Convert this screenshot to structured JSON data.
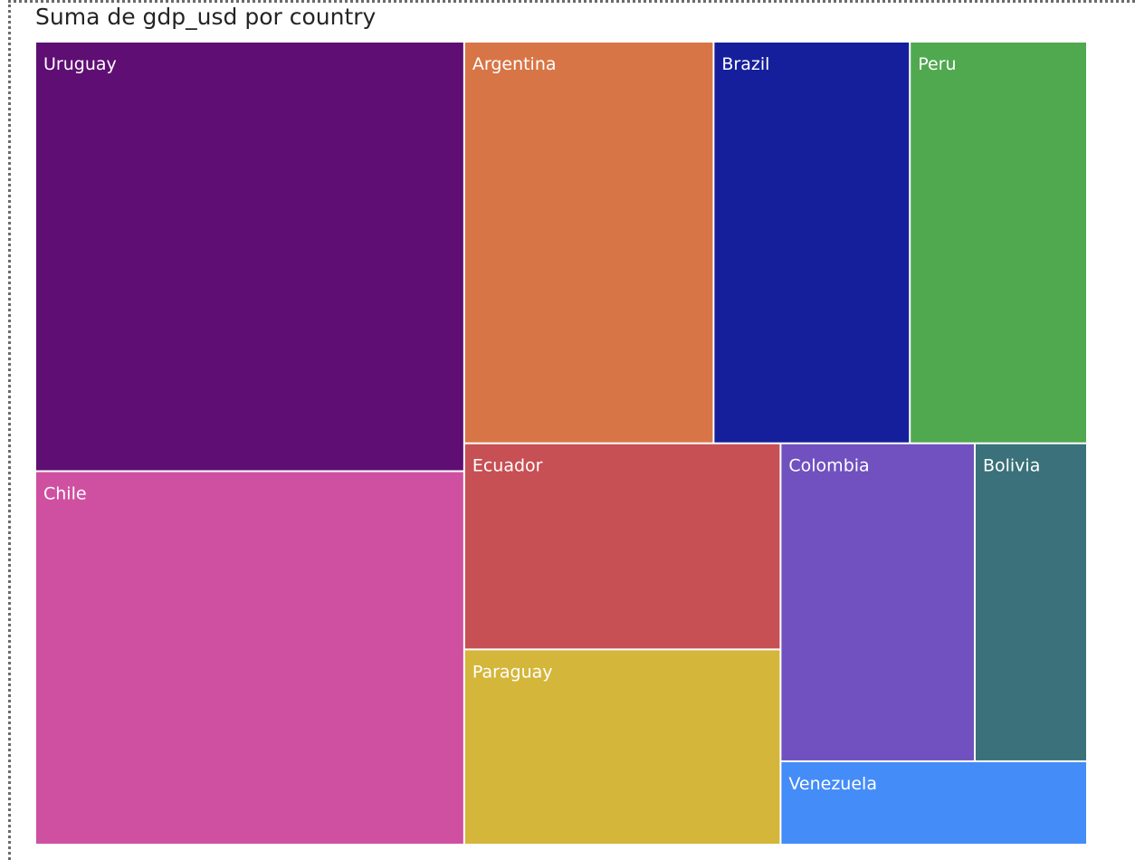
{
  "chart_data": {
    "type": "treemap",
    "title": "Suma de gdp_usd por country",
    "items": [
      {
        "label": "Uruguay",
        "value": 17.6,
        "color": "#5F0E73"
      },
      {
        "label": "Chile",
        "value": 15.3,
        "color": "#CF50A0"
      },
      {
        "label": "Argentina",
        "value": 9.57,
        "color": "#D87546"
      },
      {
        "label": "Brazil",
        "value": 7.53,
        "color": "#161F9B"
      },
      {
        "label": "Peru",
        "value": 6.8,
        "color": "#50A94F"
      },
      {
        "label": "Ecuador",
        "value": 6.23,
        "color": "#C75055"
      },
      {
        "label": "Paraguay",
        "value": 5.9,
        "color": "#D4B63B"
      },
      {
        "label": "Colombia",
        "value": 5.9,
        "color": "#7051BF"
      },
      {
        "label": "Bolivia",
        "value": 3.41,
        "color": "#3A717A"
      },
      {
        "label": "Venezuela",
        "value": 2.44,
        "color": "#448CF8"
      }
    ]
  }
}
